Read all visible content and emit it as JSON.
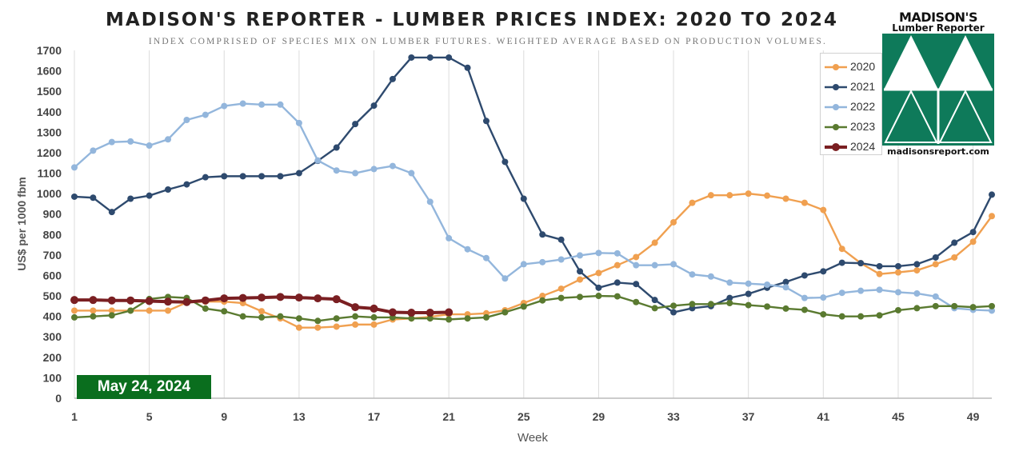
{
  "title": "MADISON'S REPORTER - LUMBER PRICES INDEX: 2020 TO 2024",
  "subtitle": "INDEX COMPRISED OF SPECIES MIX ON LUMBER FUTURES. WEIGHTED AVERAGE BASED ON PRODUCTION VOLUMES.",
  "date_badge": "May 24, 2024",
  "logo": {
    "name": "MADISON'S",
    "subtitle": "Lumber Reporter",
    "url": "madisonsreport.com",
    "color": "#0e7a5a"
  },
  "chart_data": {
    "type": "line",
    "xlabel": "Week",
    "ylabel": "US$ per 1000 fbm",
    "xlim": [
      1,
      50
    ],
    "ylim": [
      0,
      1700
    ],
    "x_ticks": [
      1,
      5,
      9,
      13,
      17,
      21,
      25,
      29,
      33,
      37,
      41,
      45,
      49
    ],
    "y_ticks": [
      0,
      100,
      200,
      300,
      400,
      500,
      600,
      700,
      800,
      900,
      1000,
      1100,
      1200,
      1300,
      1400,
      1500,
      1600,
      1700
    ],
    "grid": "vertical",
    "legend_position": "right",
    "series": [
      {
        "name": "2020",
        "color": "#f0a050",
        "values": [
          428,
          428,
          428,
          428,
          428,
          428,
          468,
          472,
          472,
          465,
          425,
          390,
          345,
          345,
          350,
          360,
          360,
          385,
          390,
          398,
          410,
          410,
          415,
          430,
          465,
          500,
          535,
          580,
          612,
          650,
          690,
          760,
          860,
          955,
          992,
          992,
          1000,
          990,
          975,
          955,
          920,
          730,
          660,
          607,
          615,
          625,
          655,
          688,
          765,
          890
        ]
      },
      {
        "name": "2021",
        "color": "#2e4a6e",
        "values": [
          985,
          980,
          910,
          975,
          990,
          1020,
          1045,
          1080,
          1085,
          1085,
          1085,
          1085,
          1100,
          1160,
          1225,
          1340,
          1430,
          1560,
          1665,
          1665,
          1665,
          1615,
          1355,
          1155,
          975,
          800,
          775,
          620,
          540,
          565,
          558,
          480,
          420,
          440,
          450,
          490,
          510,
          540,
          568,
          600,
          620,
          662,
          660,
          645,
          645,
          655,
          688,
          760,
          812,
          995
        ]
      },
      {
        "name": "2022",
        "color": "#93b6dc",
        "values": [
          1128,
          1210,
          1252,
          1255,
          1235,
          1265,
          1360,
          1385,
          1428,
          1440,
          1435,
          1435,
          1345,
          1162,
          1113,
          1100,
          1120,
          1135,
          1100,
          960,
          782,
          728,
          685,
          585,
          655,
          665,
          678,
          698,
          710,
          708,
          650,
          650,
          655,
          605,
          595,
          565,
          560,
          555,
          542,
          490,
          492,
          515,
          525,
          530,
          518,
          512,
          497,
          440,
          432,
          428
        ]
      },
      {
        "name": "2023",
        "color": "#5a7a30",
        "values": [
          395,
          400,
          405,
          428,
          485,
          495,
          490,
          438,
          425,
          400,
          395,
          400,
          390,
          378,
          390,
          400,
          395,
          395,
          390,
          390,
          385,
          390,
          395,
          420,
          448,
          478,
          490,
          495,
          500,
          498,
          470,
          440,
          452,
          460,
          460,
          465,
          455,
          448,
          438,
          432,
          410,
          400,
          400,
          405,
          430,
          440,
          450,
          450,
          445,
          450
        ]
      },
      {
        "name": "2024",
        "color": "#7a1f22",
        "values": [
          480,
          480,
          478,
          478,
          475,
          472,
          470,
          478,
          488,
          490,
          492,
          495,
          492,
          488,
          484,
          445,
          438,
          420,
          418,
          418,
          420
        ]
      }
    ]
  }
}
